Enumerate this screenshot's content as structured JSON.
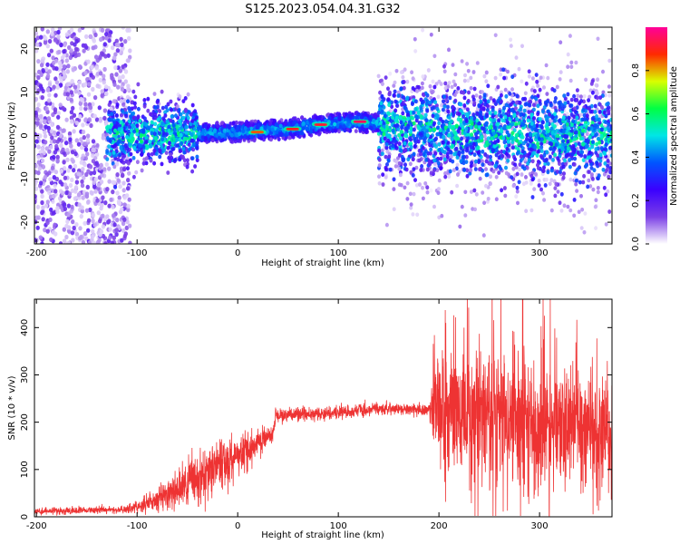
{
  "figure_title": "S125.2023.054.04.31.G32",
  "colors": {
    "snr_line": "#ee3333",
    "axes": "#000000"
  },
  "chart_data": [
    {
      "type": "heatmap",
      "title": "S125.2023.054.04.31.G32",
      "xlabel": "Height of straight line (km)",
      "ylabel": "Frequency (Hz)",
      "xlim": [
        -202,
        372
      ],
      "ylim": [
        -25,
        25
      ],
      "xticks": [
        -200,
        -100,
        0,
        100,
        200,
        300
      ],
      "yticks": [
        -20,
        -10,
        0,
        10,
        20
      ],
      "colorbar": {
        "label": "Normalized spectral amplitude",
        "range": [
          0,
          1
        ],
        "ticks": [
          "0.0",
          "0.2",
          "0.4",
          "0.6",
          "0.8"
        ],
        "tick_values": [
          0,
          0.2,
          0.4,
          0.6,
          0.8
        ],
        "colormap": [
          "#ffffff",
          "#7b3fe6",
          "#3a00ff",
          "#0055ff",
          "#00e6e6",
          "#00ff44",
          "#d9ff00",
          "#ff2a00",
          "#ff0099"
        ]
      },
      "ridge": [
        {
          "x": -130,
          "y": 0.0
        },
        {
          "x": -70,
          "y": 0.5
        },
        {
          "x": -50,
          "y": 0.5
        },
        {
          "x": 0,
          "y": 0.8
        },
        {
          "x": 50,
          "y": 1.5
        },
        {
          "x": 80,
          "y": 2.5
        },
        {
          "x": 120,
          "y": 3.2
        },
        {
          "x": 145,
          "y": 2.5
        },
        {
          "x": 200,
          "y": 1.0
        },
        {
          "x": 300,
          "y": 0.0
        },
        {
          "x": 372,
          "y": 0.0
        }
      ],
      "peaks": [
        {
          "x": 20,
          "y": 0.8,
          "amp": 0.85
        },
        {
          "x": 55,
          "y": 1.5,
          "amp": 0.9
        },
        {
          "x": 83,
          "y": 2.5,
          "amp": 0.92
        },
        {
          "x": 122,
          "y": 3.2,
          "amp": 0.95
        }
      ]
    },
    {
      "type": "line",
      "xlabel": "Height of straight line (km)",
      "ylabel": "SNR (10 * v/v)",
      "xlim": [
        -202,
        372
      ],
      "ylim": [
        0,
        460
      ],
      "xticks": [
        -200,
        -100,
        0,
        100,
        200,
        300
      ],
      "yticks": [
        0,
        100,
        200,
        300,
        400
      ],
      "envelope": [
        {
          "x": -202,
          "mean": 12,
          "noise": 6
        },
        {
          "x": -120,
          "mean": 15,
          "noise": 6
        },
        {
          "x": -100,
          "mean": 20,
          "noise": 10
        },
        {
          "x": -80,
          "mean": 35,
          "noise": 20
        },
        {
          "x": -50,
          "mean": 70,
          "noise": 40
        },
        {
          "x": -20,
          "mean": 110,
          "noise": 50
        },
        {
          "x": 0,
          "mean": 130,
          "noise": 40
        },
        {
          "x": 20,
          "mean": 155,
          "noise": 25
        },
        {
          "x": 35,
          "mean": 175,
          "noise": 15
        },
        {
          "x": 38,
          "mean": 215,
          "noise": 12
        },
        {
          "x": 100,
          "mean": 220,
          "noise": 12
        },
        {
          "x": 150,
          "mean": 230,
          "noise": 10
        },
        {
          "x": 190,
          "mean": 225,
          "noise": 12
        },
        {
          "x": 198,
          "mean": 220,
          "noise": 110
        },
        {
          "x": 270,
          "mean": 215,
          "noise": 120
        },
        {
          "x": 330,
          "mean": 190,
          "noise": 100
        },
        {
          "x": 372,
          "mean": 180,
          "noise": 100
        }
      ]
    }
  ]
}
